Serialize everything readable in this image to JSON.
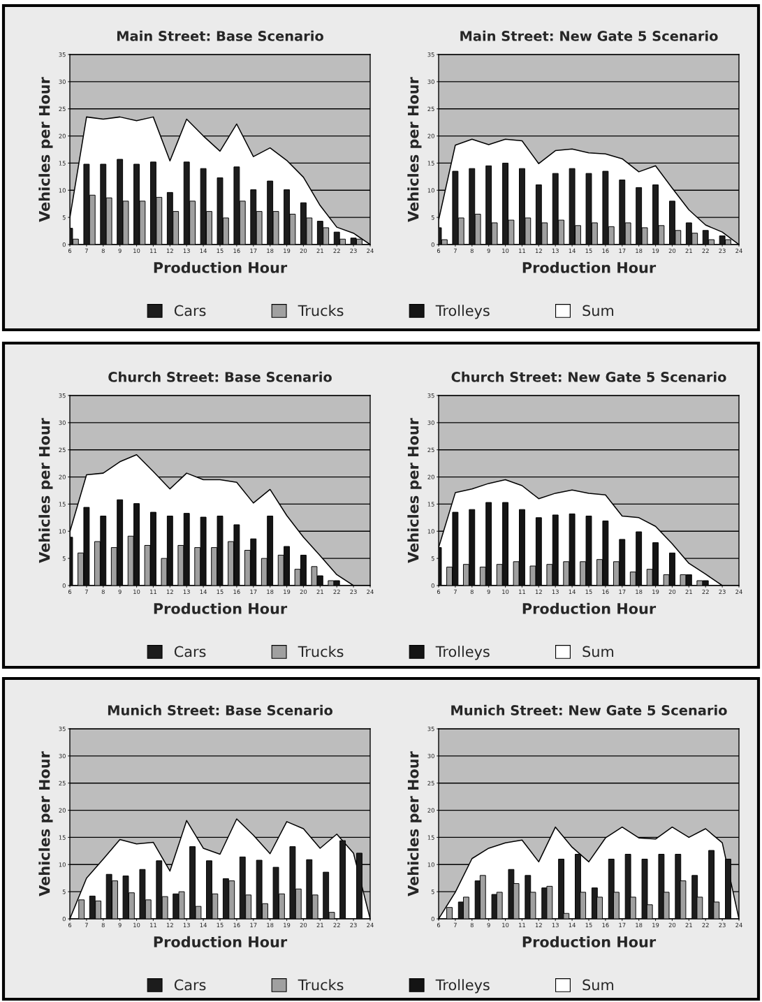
{
  "chart_data": [
    {
      "type": "bar",
      "title": "Main Street: Base Scenario",
      "xlabel": "Production Hour",
      "ylabel": "Vehicles per Hour",
      "xlim": [
        6,
        24
      ],
      "xticks": [
        6,
        7,
        8,
        9,
        10,
        11,
        12,
        13,
        14,
        15,
        16,
        17,
        18,
        19,
        20,
        21,
        22,
        23,
        24
      ],
      "ylim": [
        0,
        35
      ],
      "yticks": [
        0,
        5,
        10,
        15,
        20,
        25,
        30,
        35
      ],
      "grid": "y",
      "legend": "bottom",
      "series": [
        {
          "name": "Cars",
          "color": "#1c1c1c",
          "x": [
            6,
            7,
            8,
            9,
            10,
            11,
            12,
            13,
            14,
            15,
            16,
            17,
            18,
            19,
            20,
            21,
            22,
            23
          ],
          "values": [
            3,
            14.8,
            14.8,
            15.7,
            14.8,
            15.2,
            9.6,
            15.2,
            14.0,
            12.3,
            14.3,
            10.1,
            11.7,
            10.1,
            7.7,
            4.3,
            2.3,
            1.2
          ]
        },
        {
          "name": "Trucks",
          "color": "#a0a0a0",
          "x": [
            6.35,
            7.35,
            8.35,
            9.35,
            10.35,
            11.35,
            12.35,
            13.35,
            14.35,
            15.35,
            16.35,
            17.35,
            18.35,
            19.35,
            20.35,
            21.35,
            22.35,
            23.35
          ],
          "values": [
            1.0,
            9.1,
            8.6,
            8.0,
            8.0,
            8.7,
            6.1,
            8.0,
            6.1,
            4.9,
            8.0,
            6.1,
            6.1,
            5.6,
            4.9,
            3.1,
            1.0,
            1.0
          ]
        },
        {
          "name": "Trolleys",
          "color": "#141414"
        },
        {
          "name": "Sum",
          "type": "area",
          "color": "#ffffff",
          "x": [
            6,
            7,
            8,
            9,
            10,
            11,
            12,
            13,
            14,
            15,
            16,
            17,
            18,
            19,
            20,
            21,
            22,
            23,
            24
          ],
          "values": [
            4.9,
            23.5,
            23.1,
            23.5,
            22.8,
            23.5,
            15.4,
            23.1,
            20.0,
            17.2,
            22.2,
            16.2,
            17.8,
            15.5,
            12.4,
            7.2,
            3.2,
            2.1,
            0
          ]
        }
      ]
    },
    {
      "type": "bar",
      "title": "Main Street: New Gate 5 Scenario",
      "xlabel": "Production Hour",
      "ylabel": "Vehicles per Hour",
      "xlim": [
        6,
        24
      ],
      "xticks": [
        6,
        7,
        8,
        9,
        10,
        11,
        12,
        13,
        14,
        15,
        16,
        17,
        18,
        19,
        20,
        21,
        22,
        23,
        24
      ],
      "ylim": [
        0,
        35
      ],
      "yticks": [
        0,
        5,
        10,
        15,
        20,
        25,
        30,
        35
      ],
      "grid": "y",
      "series": [
        {
          "color": "#1c1c1c",
          "x": [
            6,
            7,
            8,
            9,
            10,
            11,
            12,
            13,
            14,
            15,
            16,
            17,
            18,
            19,
            20,
            21,
            22,
            23
          ],
          "values": [
            3.1,
            13.5,
            14.0,
            14.5,
            15.0,
            14.0,
            11.0,
            13.1,
            14.0,
            13.1,
            13.5,
            11.9,
            10.5,
            11.0,
            8.0,
            4.0,
            2.6,
            1.6
          ]
        },
        {
          "color": "#a0a0a0",
          "x": [
            6.35,
            7.35,
            8.35,
            9.35,
            10.35,
            11.35,
            12.35,
            13.35,
            14.35,
            15.35,
            16.35,
            17.35,
            18.35,
            19.35,
            20.35,
            21.35,
            22.35,
            23.35
          ],
          "values": [
            0.9,
            4.9,
            5.6,
            4.0,
            4.5,
            4.9,
            4.0,
            4.5,
            3.5,
            4.0,
            3.3,
            4.0,
            3.1,
            3.5,
            2.6,
            2.1,
            0.9,
            0.9
          ]
        },
        {
          "type": "area",
          "color": "#ffffff",
          "x": [
            6,
            7,
            8,
            9,
            10,
            11,
            12,
            13,
            14,
            15,
            16,
            17,
            18,
            19,
            20,
            21,
            22,
            23,
            24
          ],
          "values": [
            4.5,
            18.3,
            19.4,
            18.4,
            19.4,
            19.1,
            14.9,
            17.3,
            17.6,
            16.9,
            16.7,
            15.8,
            13.4,
            14.5,
            10.4,
            6.4,
            3.6,
            2.3,
            0
          ]
        }
      ]
    },
    {
      "type": "bar",
      "title": "Church Street: Base Scenario",
      "xlabel": "Production Hour",
      "ylabel": "Vehicles per Hour",
      "xlim": [
        6,
        24
      ],
      "xticks": [
        6,
        7,
        8,
        9,
        10,
        11,
        12,
        13,
        14,
        15,
        16,
        17,
        18,
        19,
        20,
        21,
        22,
        23,
        24
      ],
      "ylim": [
        0,
        35
      ],
      "yticks": [
        0,
        5,
        10,
        15,
        20,
        25,
        30,
        35
      ],
      "grid": "y",
      "legend": "bottom",
      "series": [
        {
          "name": "Cars",
          "color": "#1c1c1c"
        },
        {
          "name": "Trucks",
          "color": "#a0a0a0",
          "x": [
            6.65,
            7.65,
            8.65,
            9.65,
            10.65,
            11.65,
            12.65,
            13.65,
            14.65,
            15.65,
            16.65,
            17.65,
            18.65,
            19.65,
            20.65,
            21.65
          ],
          "values": [
            6.0,
            8.1,
            7.0,
            9.1,
            7.4,
            5.0,
            7.4,
            7.0,
            7.0,
            8.1,
            6.5,
            5.0,
            5.6,
            3.0,
            3.5,
            0.9
          ]
        },
        {
          "name": "Trolleys",
          "color": "#141414",
          "x": [
            6,
            7,
            8,
            9,
            10,
            11,
            12,
            13,
            14,
            15,
            16,
            17,
            18,
            19,
            20,
            21,
            22
          ],
          "values": [
            8.9,
            14.4,
            12.8,
            15.8,
            15.1,
            13.5,
            12.8,
            13.3,
            12.6,
            12.8,
            11.2,
            8.6,
            12.8,
            7.2,
            5.6,
            1.8,
            0.9
          ]
        },
        {
          "name": "Sum",
          "type": "area",
          "color": "#ffffff",
          "x": [
            6,
            7,
            8,
            9,
            10,
            11,
            12,
            13,
            14,
            15,
            16,
            17,
            18,
            19,
            20,
            21,
            22,
            23,
            24
          ],
          "values": [
            9.9,
            20.4,
            20.7,
            22.8,
            24.1,
            21.0,
            17.8,
            20.7,
            19.5,
            19.5,
            19.0,
            15.2,
            17.7,
            12.9,
            8.9,
            5.5,
            2.0,
            0,
            0
          ]
        }
      ]
    },
    {
      "type": "bar",
      "title": "Church Street: New Gate 5 Scenario",
      "xlabel": "Production Hour",
      "ylabel": "Vehicles per Hour",
      "xlim": [
        6,
        24
      ],
      "xticks": [
        6,
        7,
        8,
        9,
        10,
        11,
        12,
        13,
        14,
        15,
        16,
        17,
        18,
        19,
        20,
        21,
        22,
        23,
        24
      ],
      "ylim": [
        0,
        35
      ],
      "yticks": [
        0,
        5,
        10,
        15,
        20,
        25,
        30,
        35
      ],
      "grid": "y",
      "series": [
        {
          "color": "#a0a0a0",
          "x": [
            6.65,
            7.65,
            8.65,
            9.65,
            10.65,
            11.65,
            12.65,
            13.65,
            14.65,
            15.65,
            16.65,
            17.65,
            18.65,
            19.65,
            20.65,
            21.65
          ],
          "values": [
            3.4,
            3.9,
            3.4,
            3.9,
            4.4,
            3.6,
            3.9,
            4.4,
            4.4,
            4.8,
            4.4,
            2.5,
            3.0,
            2.0,
            2.0,
            0.9
          ]
        },
        {
          "color": "#141414",
          "x": [
            6,
            7,
            8,
            9,
            10,
            11,
            12,
            13,
            14,
            15,
            16,
            17,
            18,
            19,
            20,
            21,
            22
          ],
          "values": [
            7.0,
            13.5,
            14.0,
            15.3,
            15.3,
            14.0,
            12.5,
            13.0,
            13.2,
            12.8,
            11.9,
            8.5,
            9.9,
            7.9,
            6.0,
            2.0,
            0.9
          ]
        },
        {
          "type": "area",
          "color": "#ffffff",
          "x": [
            6,
            7,
            8,
            9,
            10,
            11,
            12,
            13,
            14,
            15,
            16,
            17,
            18,
            19,
            20,
            21,
            22,
            23,
            24
          ],
          "values": [
            7.0,
            17.1,
            17.8,
            18.8,
            19.5,
            18.4,
            16.0,
            17.0,
            17.6,
            17.0,
            16.7,
            12.8,
            12.5,
            10.9,
            7.7,
            4.1,
            2.1,
            0,
            0
          ]
        }
      ]
    },
    {
      "type": "bar",
      "title": "Munich Street: Base Scenario",
      "xlabel": "Production Hour",
      "ylabel": "Vehicles per Hour",
      "xlim": [
        6,
        24
      ],
      "xticks": [
        6,
        7,
        8,
        9,
        10,
        11,
        12,
        13,
        14,
        15,
        16,
        17,
        18,
        19,
        20,
        21,
        22,
        23,
        24
      ],
      "ylim": [
        0,
        35
      ],
      "yticks": [
        0,
        5,
        10,
        15,
        20,
        25,
        30,
        35
      ],
      "grid": "y",
      "legend": "bottom",
      "series": [
        {
          "name": "Cars",
          "color": "#1c1c1c",
          "x": [
            7.35,
            8.35,
            9.35,
            10.35,
            11.35,
            12.35,
            13.35,
            14.35,
            15.35,
            16.35,
            17.35,
            18.35,
            19.35,
            20.35,
            21.35,
            22.35,
            23.35
          ],
          "values": [
            4.2,
            8.2,
            7.9,
            9.1,
            10.7,
            4.6,
            13.3,
            10.7,
            7.4,
            11.4,
            10.8,
            9.5,
            13.3,
            10.9,
            8.6,
            14.4,
            12.1
          ]
        },
        {
          "name": "Trucks",
          "color": "#a0a0a0",
          "x": [
            6.7,
            7.7,
            8.7,
            9.7,
            10.7,
            11.7,
            12.7,
            13.7,
            14.7,
            15.7,
            16.7,
            17.7,
            18.7,
            19.7,
            20.7,
            21.7
          ],
          "values": [
            3.5,
            3.3,
            7.0,
            4.8,
            3.5,
            4.1,
            5.0,
            2.3,
            4.6,
            7.0,
            4.4,
            2.8,
            4.6,
            5.5,
            4.4,
            1.2
          ]
        },
        {
          "name": "Trolleys",
          "color": "#141414"
        },
        {
          "name": "Sum",
          "type": "area",
          "color": "#ffffff",
          "x": [
            6,
            7,
            8,
            9,
            10,
            11,
            12,
            13,
            14,
            15,
            16,
            17,
            18,
            19,
            20,
            21,
            22,
            23,
            24
          ],
          "values": [
            0,
            7.5,
            11.0,
            14.6,
            13.8,
            14.1,
            8.8,
            18.1,
            13.0,
            11.9,
            18.4,
            15.4,
            12.0,
            17.9,
            16.6,
            13.0,
            15.6,
            12.1,
            0
          ]
        }
      ]
    },
    {
      "type": "bar",
      "title": "Munich Street: New Gate 5 Scenario",
      "xlabel": "Production Hour",
      "ylabel": "Vehicles per Hour",
      "xlim": [
        6,
        24
      ],
      "xticks": [
        6,
        7,
        8,
        9,
        10,
        11,
        12,
        13,
        14,
        15,
        16,
        17,
        18,
        19,
        20,
        21,
        22,
        23,
        24
      ],
      "ylim": [
        0,
        35
      ],
      "yticks": [
        0,
        5,
        10,
        15,
        20,
        25,
        30,
        35
      ],
      "grid": "y",
      "series": [
        {
          "color": "#1c1c1c",
          "x": [
            7.35,
            8.35,
            9.35,
            10.35,
            11.35,
            12.35,
            13.35,
            14.35,
            15.35,
            16.35,
            17.35,
            18.35,
            19.35,
            20.35,
            21.35,
            22.35,
            23.35
          ],
          "values": [
            3.1,
            7.0,
            4.5,
            9.1,
            8.0,
            5.7,
            11.0,
            11.9,
            5.7,
            11.0,
            11.9,
            11.0,
            11.9,
            11.9,
            8.0,
            12.6,
            11.0
          ]
        },
        {
          "color": "#a0a0a0",
          "x": [
            6.65,
            7.65,
            8.65,
            9.65,
            10.65,
            11.65,
            12.65,
            13.65,
            14.65,
            15.65,
            16.65,
            17.65,
            18.65,
            19.65,
            20.65,
            21.65,
            22.65
          ],
          "values": [
            2.1,
            4.0,
            8.0,
            4.9,
            6.5,
            4.9,
            6.0,
            1.0,
            4.9,
            4.0,
            4.9,
            4.0,
            2.6,
            4.9,
            7.0,
            4.0,
            3.1
          ]
        },
        {
          "type": "area",
          "color": "#ffffff",
          "x": [
            6,
            7,
            8,
            9,
            10,
            11,
            12,
            13,
            14,
            15,
            16,
            17,
            18,
            19,
            20,
            21,
            22,
            23,
            24
          ],
          "values": [
            0,
            4.9,
            11.1,
            13.0,
            14.0,
            14.5,
            10.5,
            16.9,
            13.2,
            10.5,
            14.9,
            16.9,
            14.9,
            14.7,
            16.9,
            15.0,
            16.6,
            14.0,
            0
          ]
        }
      ]
    }
  ]
}
